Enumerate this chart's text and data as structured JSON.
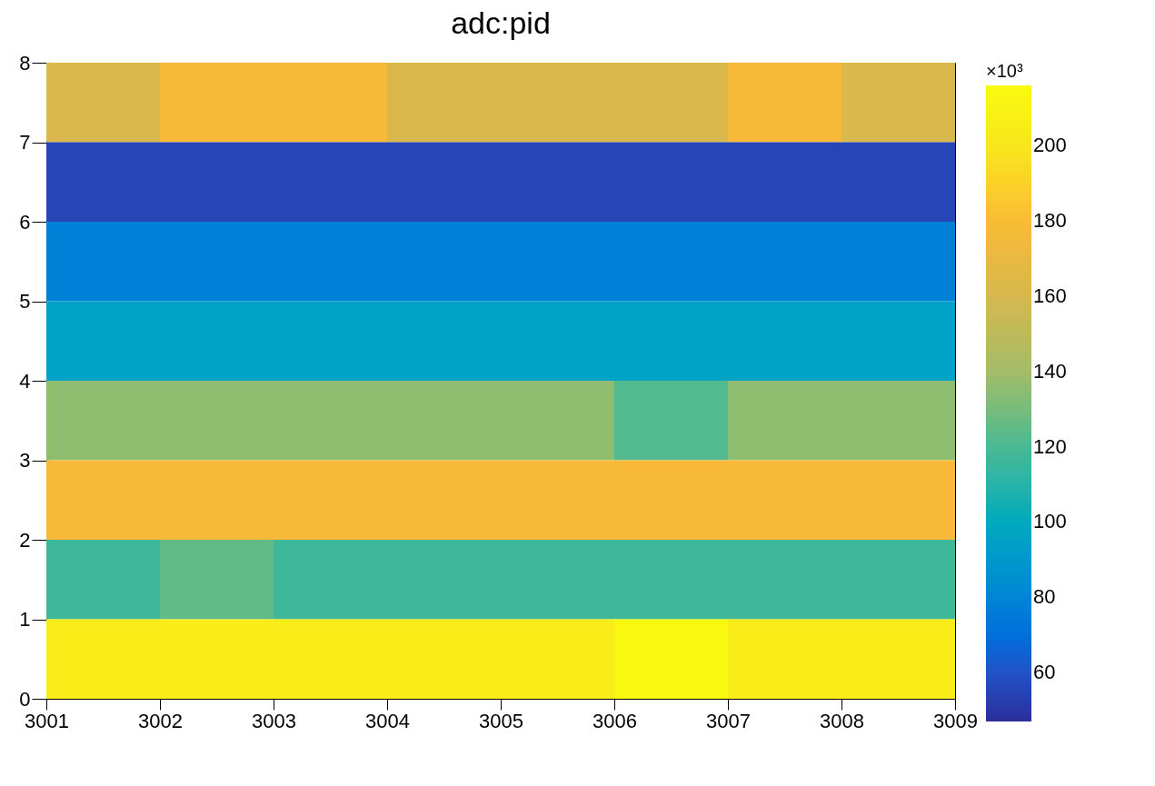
{
  "chart_data": {
    "type": "heatmap",
    "title": "adc:pid",
    "clabel": "×10³",
    "cells": [
      [
        162,
        178,
        178,
        162,
        162,
        162,
        178,
        162
      ],
      [
        55,
        55,
        55,
        55,
        55,
        55,
        55,
        55
      ],
      [
        78,
        78,
        78,
        78,
        78,
        78,
        78,
        78
      ],
      [
        95,
        95,
        95,
        95,
        95,
        95,
        95,
        95
      ],
      [
        135,
        135,
        135,
        135,
        135,
        122,
        135,
        135
      ],
      [
        178,
        178,
        178,
        178,
        178,
        178,
        178,
        178
      ],
      [
        117,
        125,
        117,
        117,
        117,
        117,
        117,
        117
      ],
      [
        205,
        205,
        205,
        205,
        205,
        214,
        205,
        205
      ]
    ],
    "xlim": [
      3001,
      3009
    ],
    "xticks": [
      3001,
      3002,
      3003,
      3004,
      3005,
      3006,
      3007,
      3008,
      3009
    ],
    "ylim": [
      0,
      8
    ],
    "yticks": [
      0,
      1,
      2,
      3,
      4,
      5,
      6,
      7,
      8
    ],
    "clim": [
      47,
      216
    ],
    "cticks": [
      60,
      80,
      100,
      120,
      140,
      160,
      180,
      200
    ]
  }
}
